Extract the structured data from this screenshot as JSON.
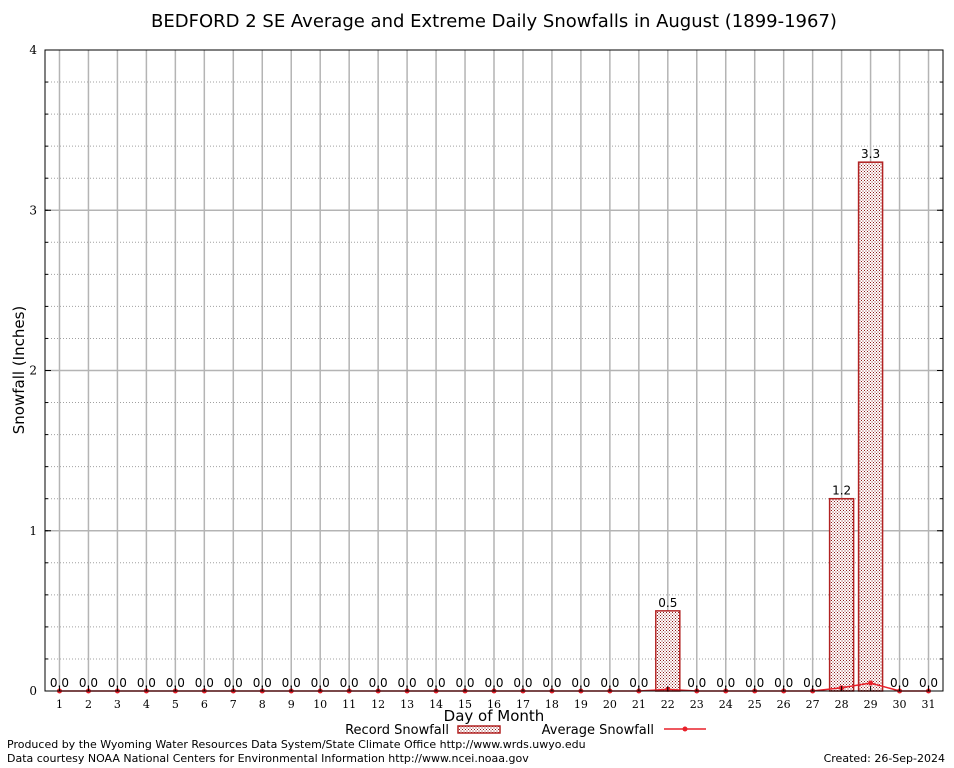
{
  "chart_data": {
    "type": "bar",
    "title": "BEDFORD 2 SE Average and Extreme Daily Snowfalls in August (1899-1967)",
    "xlabel": "Day of Month",
    "ylabel": "Snowfall (Inches)",
    "ylim": [
      0,
      4
    ],
    "yticks": [
      "0",
      "1",
      "2",
      "3",
      "4"
    ],
    "categories": [
      "1",
      "2",
      "3",
      "4",
      "5",
      "6",
      "7",
      "8",
      "9",
      "10",
      "11",
      "12",
      "13",
      "14",
      "15",
      "16",
      "17",
      "18",
      "19",
      "20",
      "21",
      "22",
      "23",
      "24",
      "25",
      "26",
      "27",
      "28",
      "29",
      "30",
      "31"
    ],
    "series": [
      {
        "name": "Record Snowfall",
        "type": "bar",
        "values": [
          0,
          0,
          0,
          0,
          0,
          0,
          0,
          0,
          0,
          0,
          0,
          0,
          0,
          0,
          0,
          0,
          0,
          0,
          0,
          0,
          0,
          0.5,
          0,
          0,
          0,
          0,
          0,
          1.2,
          3.3,
          0,
          0
        ],
        "labels": [
          "0.0",
          "0.0",
          "0.0",
          "0.0",
          "0.0",
          "0.0",
          "0.0",
          "0.0",
          "0.0",
          "0.0",
          "0.0",
          "0.0",
          "0.0",
          "0.0",
          "0.0",
          "0.0",
          "0.0",
          "0.0",
          "0.0",
          "0.0",
          "0.0",
          "0.5",
          "0.0",
          "0.0",
          "0.0",
          "0.0",
          "0.0",
          "1.2",
          "3.3",
          "0.0",
          "0.0"
        ],
        "color": "#b22222"
      },
      {
        "name": "Average Snowfall",
        "type": "line",
        "values": [
          0,
          0,
          0,
          0,
          0,
          0,
          0,
          0,
          0,
          0,
          0,
          0,
          0,
          0,
          0,
          0,
          0,
          0,
          0,
          0,
          0,
          0.01,
          0,
          0,
          0,
          0,
          0,
          0.02,
          0.05,
          0,
          0
        ],
        "color": "#e8202a"
      }
    ],
    "grid": true,
    "legend": "bottom"
  },
  "footer": {
    "left_line1": "Produced by the Wyoming Water Resources Data System/State Climate Office http://www.wrds.uwyo.edu",
    "left_line2": "Data courtesy NOAA National Centers for Environmental Information http://www.ncei.noaa.gov",
    "right": "Created:  26-Sep-2024"
  },
  "colors": {
    "bar_stroke": "#b22222",
    "average_line": "#e8202a",
    "grid_major": "#b4b4b4",
    "grid_minor": "#a0a0a0"
  }
}
